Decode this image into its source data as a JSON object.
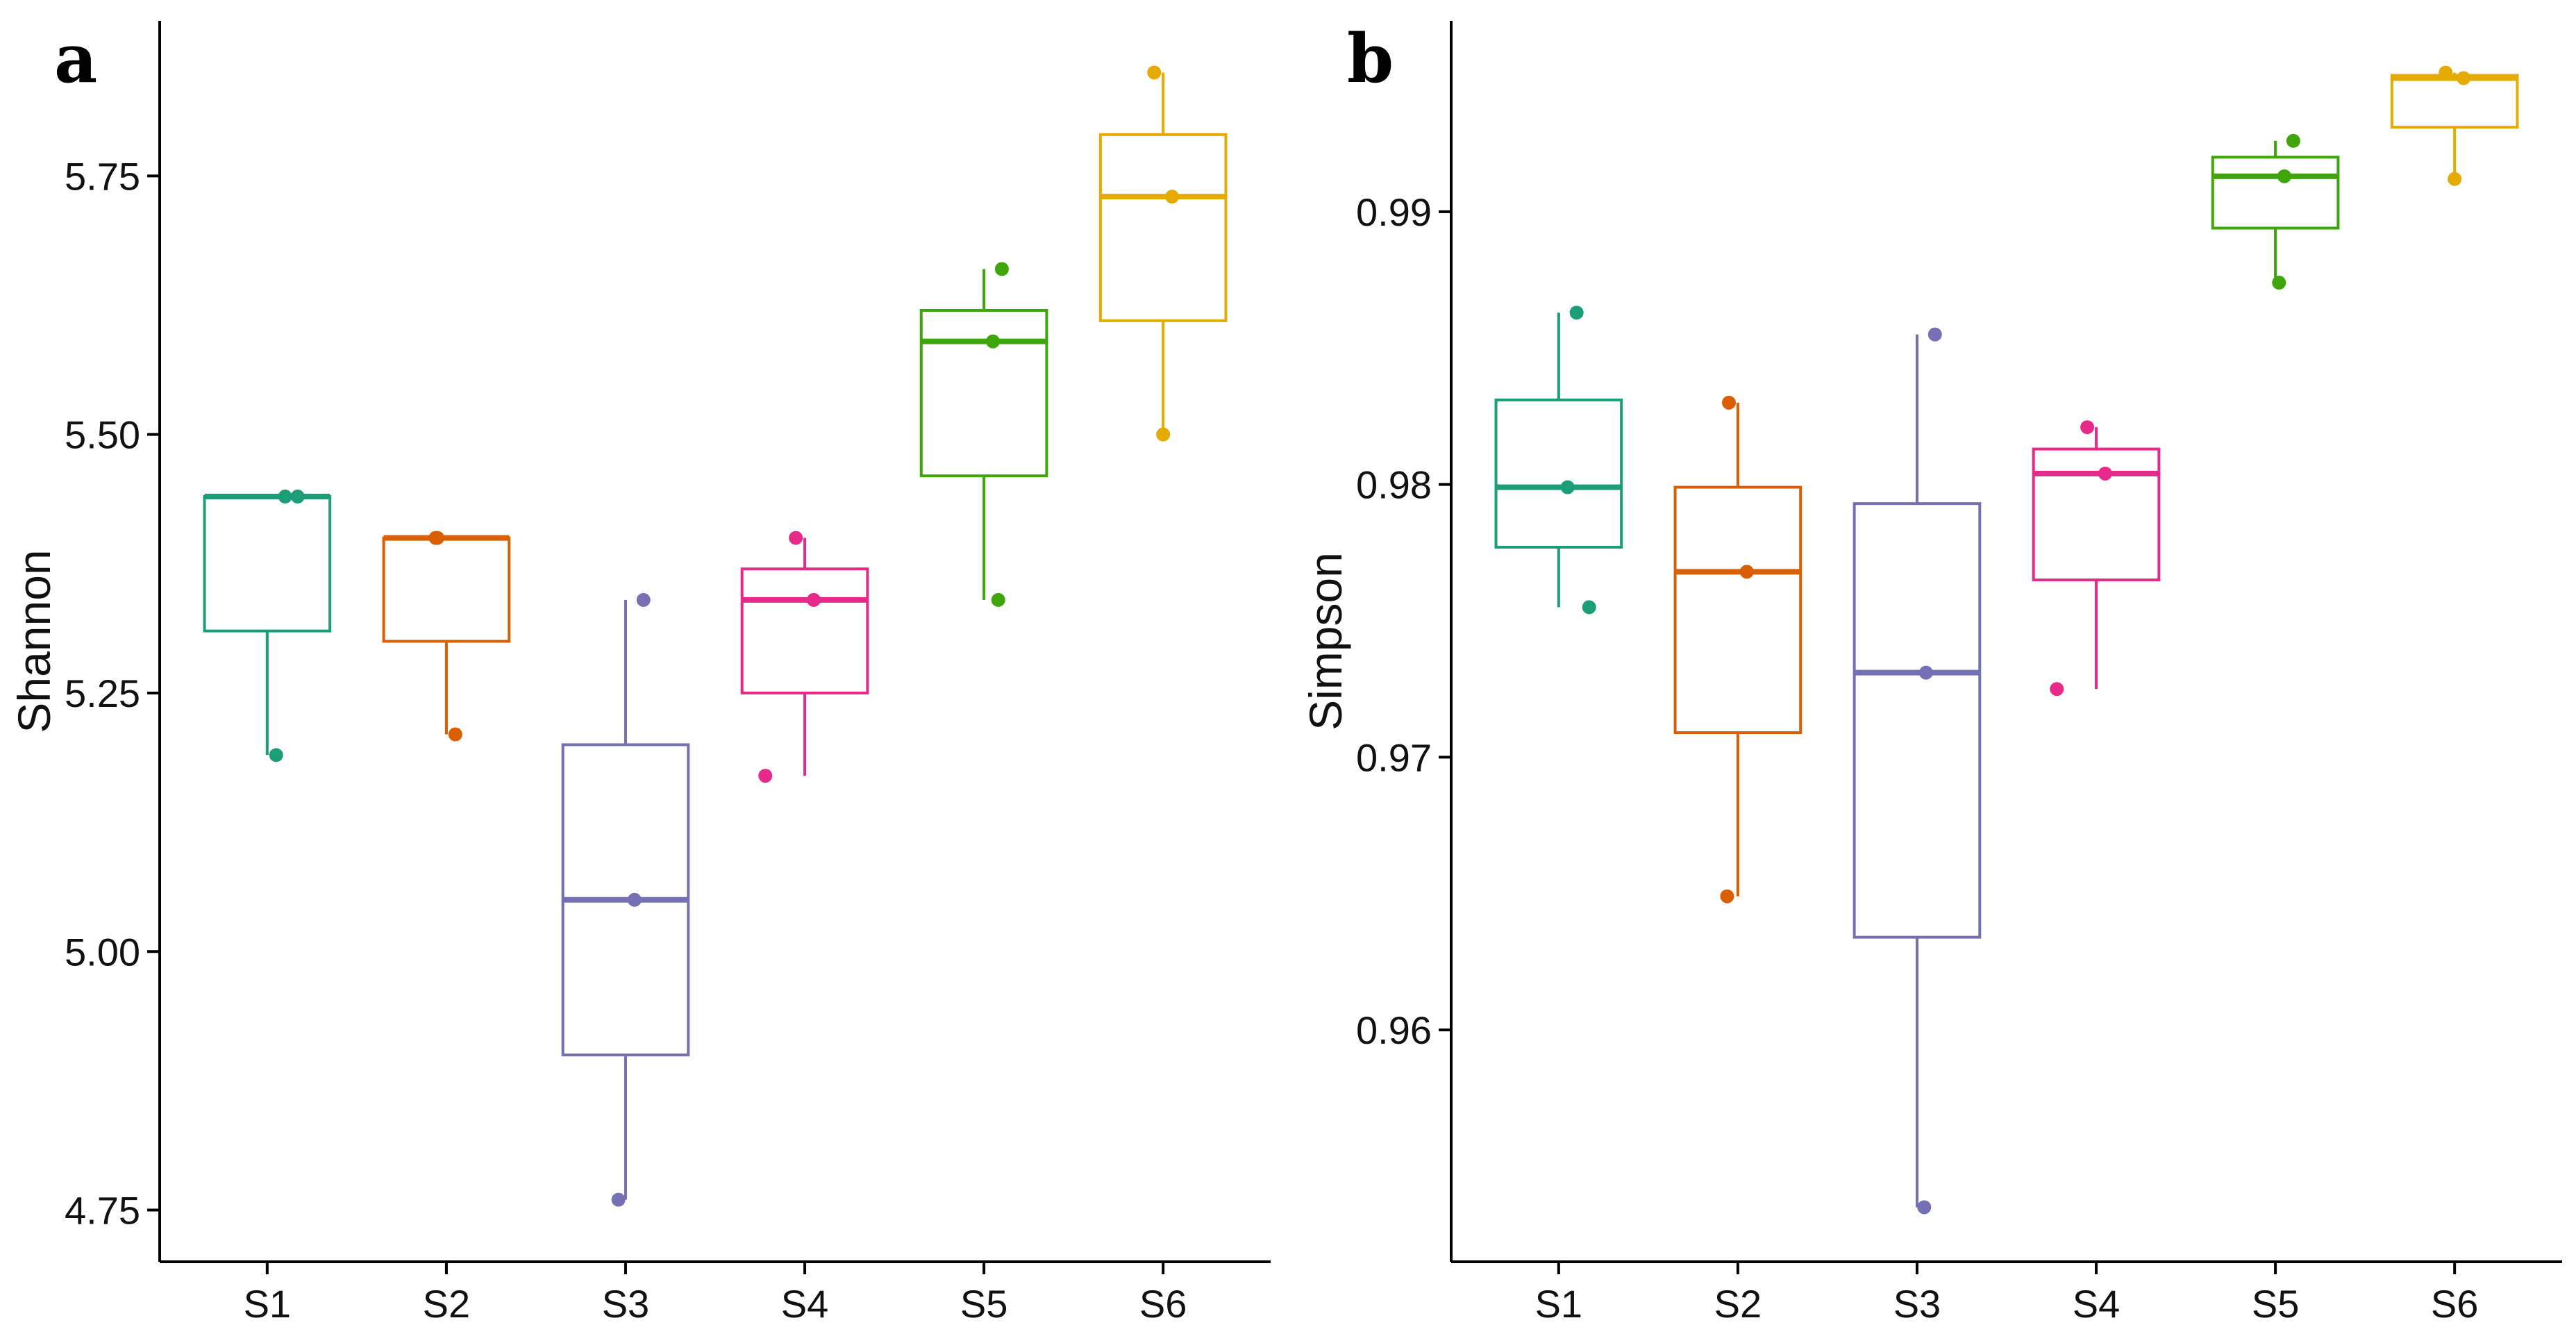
{
  "chart_data": [
    {
      "type": "boxplot",
      "panel_label": "a",
      "ylabel": "Shannon",
      "xlabel": "",
      "categories": [
        "S1",
        "S2",
        "S3",
        "S4",
        "S5",
        "S6"
      ],
      "ylim": [
        4.7,
        5.9
      ],
      "yticks": [
        4.75,
        5.0,
        5.25,
        5.5,
        5.75
      ],
      "ytick_labels": [
        "4.75",
        "5.00",
        "5.25",
        "5.50",
        "5.75"
      ],
      "colors": [
        "#1b9e77",
        "#d95f02",
        "#7570b3",
        "#e7298a",
        "#3ea50a",
        "#e6ab02"
      ],
      "boxes": [
        {
          "whisker_low": 5.19,
          "q1": 5.31,
          "median": 5.44,
          "q3": 5.44,
          "whisker_high": 5.44,
          "points": [
            5.44,
            5.19,
            5.44
          ]
        },
        {
          "whisker_low": 5.21,
          "q1": 5.3,
          "median": 5.4,
          "q3": 5.4,
          "whisker_high": 5.4,
          "points": [
            5.4,
            5.21,
            5.4
          ]
        },
        {
          "whisker_low": 4.76,
          "q1": 4.9,
          "median": 5.05,
          "q3": 5.2,
          "whisker_high": 5.34,
          "points": [
            5.34,
            5.05,
            4.76
          ]
        },
        {
          "whisker_low": 5.17,
          "q1": 5.25,
          "median": 5.34,
          "q3": 5.37,
          "whisker_high": 5.4,
          "points": [
            5.4,
            5.34,
            5.17
          ]
        },
        {
          "whisker_low": 5.34,
          "q1": 5.46,
          "median": 5.59,
          "q3": 5.62,
          "whisker_high": 5.66,
          "points": [
            5.66,
            5.59,
            5.34
          ]
        },
        {
          "whisker_low": 5.5,
          "q1": 5.61,
          "median": 5.73,
          "q3": 5.79,
          "whisker_high": 5.85,
          "points": [
            5.85,
            5.73,
            5.5
          ]
        }
      ]
    },
    {
      "type": "boxplot",
      "panel_label": "b",
      "ylabel": "Simpson",
      "xlabel": "",
      "categories": [
        "S1",
        "S2",
        "S3",
        "S4",
        "S5",
        "S6"
      ],
      "ylim": [
        0.9515,
        0.997
      ],
      "yticks": [
        0.96,
        0.97,
        0.98,
        0.99
      ],
      "ytick_labels": [
        "0.96",
        "0.97",
        "0.98",
        "0.99"
      ],
      "colors": [
        "#1b9e77",
        "#d95f02",
        "#7570b3",
        "#e7298a",
        "#3ea50a",
        "#e6ab02"
      ],
      "boxes": [
        {
          "whisker_low": 0.9755,
          "q1": 0.9777,
          "median": 0.9799,
          "q3": 0.9831,
          "whisker_high": 0.9863,
          "points": [
            0.9863,
            0.9799,
            0.9755
          ]
        },
        {
          "whisker_low": 0.9649,
          "q1": 0.9709,
          "median": 0.9768,
          "q3": 0.9799,
          "whisker_high": 0.983,
          "points": [
            0.983,
            0.9768,
            0.9649
          ]
        },
        {
          "whisker_low": 0.9535,
          "q1": 0.9634,
          "median": 0.9731,
          "q3": 0.9793,
          "whisker_high": 0.9855,
          "points": [
            0.9855,
            0.9731,
            0.9535
          ]
        },
        {
          "whisker_low": 0.9725,
          "q1": 0.9765,
          "median": 0.9804,
          "q3": 0.9813,
          "whisker_high": 0.9821,
          "points": [
            0.9821,
            0.9804,
            0.9725
          ]
        },
        {
          "whisker_low": 0.9874,
          "q1": 0.9894,
          "median": 0.9913,
          "q3": 0.992,
          "whisker_high": 0.9926,
          "points": [
            0.9926,
            0.9913,
            0.9874
          ]
        },
        {
          "whisker_low": 0.9912,
          "q1": 0.9931,
          "median": 0.9949,
          "q3": 0.995,
          "whisker_high": 0.9951,
          "points": [
            0.9951,
            0.9949,
            0.9912
          ]
        }
      ]
    }
  ]
}
